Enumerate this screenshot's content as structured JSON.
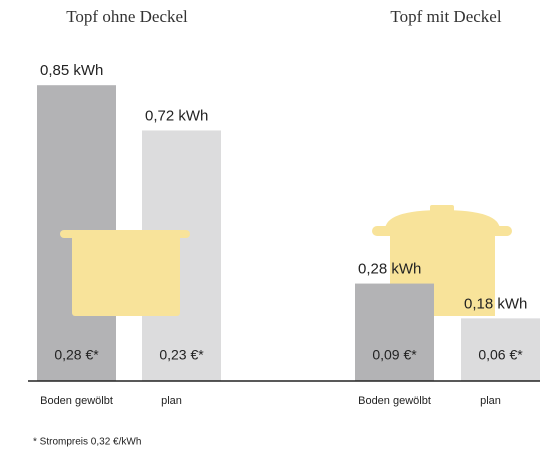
{
  "chart_data": {
    "type": "bar",
    "groups": [
      "Topf ohne Deckel",
      "Topf mit Deckel"
    ],
    "categories": [
      "Boden gewölbt",
      "plan",
      "Boden gewölbt",
      "plan"
    ],
    "values": [
      0.85,
      0.72,
      0.28,
      0.18
    ],
    "value_labels": [
      "0,85 kWh",
      "0,72 kWh",
      "0,28 kWh",
      "0,18 kWh"
    ],
    "cost_labels": [
      "0,28 €*",
      "0,23 €*",
      "0,09 €*",
      "0,06 €*"
    ],
    "colors": [
      "#b3b3b5",
      "#dcdcdd",
      "#b3b3b5",
      "#dcdcdd"
    ],
    "footnote": "* Strompreis 0,32 €/kWh"
  }
}
